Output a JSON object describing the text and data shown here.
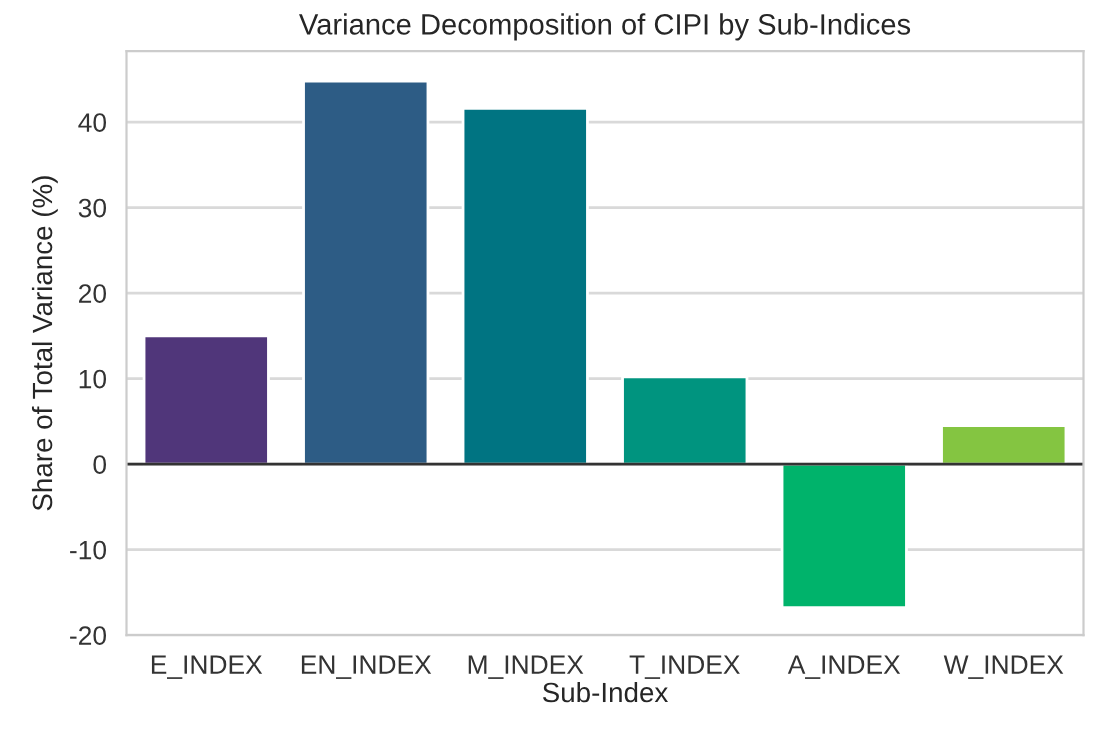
{
  "chart_data": {
    "type": "bar",
    "title": "Variance Decomposition of CIPI by Sub-Indices",
    "xlabel": "Sub-Index",
    "ylabel": "Share of Total Variance (%)",
    "categories": [
      "E_INDEX",
      "EN_INDEX",
      "M_INDEX",
      "T_INDEX",
      "A_INDEX",
      "W_INDEX"
    ],
    "values": [
      15.0,
      44.8,
      41.6,
      10.2,
      -16.8,
      4.5
    ],
    "colors": [
      "#50367a",
      "#2d5c85",
      "#007482",
      "#00947f",
      "#00b36b",
      "#84c541"
    ],
    "ylim": [
      -20,
      48.3
    ],
    "yticks": [
      -20,
      -10,
      0,
      10,
      20,
      30,
      40
    ],
    "grid": "y",
    "ref_lines": [
      {
        "axis": "y",
        "value": 0,
        "color": "#333333",
        "line_style": "solid"
      }
    ]
  }
}
